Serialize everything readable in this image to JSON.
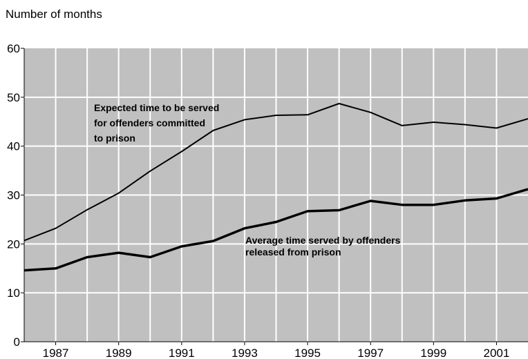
{
  "chart_data": {
    "type": "line",
    "title": "",
    "ylabel": "Number of months",
    "xlabel": "",
    "x": [
      1986,
      1987,
      1988,
      1989,
      1990,
      1991,
      1992,
      1993,
      1994,
      1995,
      1996,
      1997,
      1998,
      1999,
      2000,
      2001,
      2002
    ],
    "xlim": [
      1986,
      2002
    ],
    "ylim": [
      0,
      60
    ],
    "x_ticks": [
      "1987",
      "1989",
      "1991",
      "1993",
      "1995",
      "1997",
      "1999",
      "2001"
    ],
    "y_ticks": [
      "0",
      "10",
      "20",
      "30",
      "40",
      "50",
      "60"
    ],
    "grid": true,
    "colors": {
      "plot_bg": "#c0c0c0",
      "grid": "#ffffff",
      "line": "#000000"
    },
    "series": [
      {
        "annotation": [
          "Expected time to be served",
          "for offenders committed",
          "to prison"
        ],
        "values": [
          20.7,
          23.2,
          27.0,
          30.4,
          34.9,
          38.9,
          43.2,
          45.4,
          46.3,
          46.4,
          48.7,
          46.9,
          44.2,
          44.9,
          44.4,
          43.7,
          45.6
        ]
      },
      {
        "annotation": [
          "Average time served by offenders",
          "released from prison"
        ],
        "values": [
          14.6,
          15.0,
          17.3,
          18.2,
          17.3,
          19.5,
          20.6,
          23.2,
          24.5,
          26.7,
          26.9,
          28.8,
          28.0,
          28.0,
          28.9,
          29.3,
          31.2
        ]
      }
    ]
  }
}
